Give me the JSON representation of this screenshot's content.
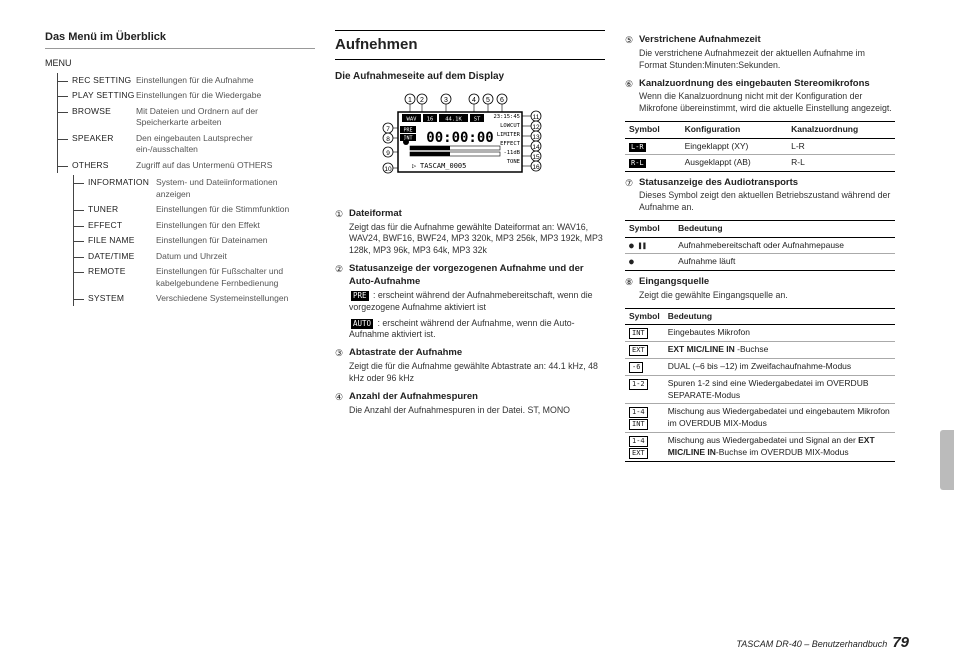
{
  "col1": {
    "heading": "Das Menü im Überblick",
    "root_label": "MENU",
    "lvl1": [
      {
        "name": "REC SETTING",
        "desc": "Einstellungen für die Aufnahme"
      },
      {
        "name": "PLAY SETTING",
        "desc": "Einstellungen für die Wiedergabe"
      },
      {
        "name": "BROWSE",
        "desc": "Mit Dateien und Ordnern auf der Speicherkarte arbeiten"
      },
      {
        "name": "SPEAKER",
        "desc": "Den eingebauten Lautsprecher ein-/ausschalten"
      },
      {
        "name": "OTHERS",
        "desc": "Zugriff auf das Untermenü OTHERS"
      }
    ],
    "lvl2": [
      {
        "name": "INFORMATION",
        "desc": "System- und Dateiinformationen anzeigen"
      },
      {
        "name": "TUNER",
        "desc": "Einstellungen für die Stimmfunktion"
      },
      {
        "name": "EFFECT",
        "desc": "Einstellungen für den Effekt"
      },
      {
        "name": "FILE NAME",
        "desc": "Einstellungen für Dateinamen"
      },
      {
        "name": "DATE/TIME",
        "desc": "Datum und Uhrzeit"
      },
      {
        "name": "REMOTE",
        "desc": "Einstellungen für Fußschalter und kabelgebundene Fernbedienung"
      },
      {
        "name": "SYSTEM",
        "desc": "Verschiedene Systemeinstellungen"
      }
    ]
  },
  "col2": {
    "title": "Aufnehmen",
    "sub": "Die Aufnahmeseite auf dem Display",
    "display": {
      "callouts": [
        "1",
        "2",
        "3",
        "4",
        "5",
        "6",
        "7",
        "8",
        "9",
        "10",
        "11",
        "12",
        "13",
        "14",
        "15",
        "16"
      ],
      "row1": [
        "WAV",
        "16",
        "44.1K",
        "ST"
      ],
      "time": "00:00:00",
      "right_labels_small": [
        "23:15:45",
        "LOWCUT",
        "LIMITER",
        "EFFECT",
        "-11dB",
        "TONE"
      ],
      "left_labels_small": [
        "PRE",
        "INT",
        "",
        "",
        ""
      ],
      "bottom": "TASCAM_0005"
    },
    "items": [
      {
        "n": "①",
        "t": "Dateiformat",
        "b": "Zeigt das für die Aufnahme gewählte Dateiformat an: WAV16, WAV24, BWF16, BWF24, MP3 320k, MP3 256k, MP3 192k, MP3 128k, MP3 96k, MP3 64k, MP3 32k"
      },
      {
        "n": "②",
        "t": "Statusanzeige der vorgezogenen Aufnahme und der Auto-Aufnahme",
        "b": ""
      },
      {
        "n": "③",
        "t": "Abtastrate der Aufnahme",
        "b": "Zeigt die für die Aufnahme gewählte Abtastrate an: 44.1 kHz, 48 kHz oder 96 kHz"
      },
      {
        "n": "④",
        "t": "Anzahl der Aufnahmespuren",
        "b": "Die Anzahl der Aufnahmespuren in der Datei. ST, MONO"
      }
    ],
    "item2_pre_label": "PRE",
    "item2_pre_text": " : erscheint während der Aufnahmebereitschaft, wenn die vorgezogene Aufnahme aktiviert ist",
    "item2_auto_label": "AUTO",
    "item2_auto_text": " : erscheint während der Aufnahme, wenn die Auto-Aufnahme aktiviert ist."
  },
  "col3": {
    "items": [
      {
        "n": "⑤",
        "t": "Verstrichene Aufnahmezeit",
        "b": "Die verstrichene Aufnahmezeit der aktuellen Aufnahme im Format Stunden:Minuten:Sekunden."
      },
      {
        "n": "⑥",
        "t": "Kanalzuordnung des eingebauten Stereomikrofons",
        "b": "Wenn die Kanalzuordnung nicht mit der Konfiguration der Mikrofone übereinstimmt, wird die aktuelle Einstellung angezeigt."
      }
    ],
    "table1": {
      "head": [
        "Symbol",
        "Konfiguration",
        "Kanalzuordnung"
      ],
      "rows": [
        [
          "L-R",
          "Eingeklappt (XY)",
          "L-R"
        ],
        [
          "R-L",
          "Ausgeklappt (AB)",
          "R-L"
        ]
      ]
    },
    "item7": {
      "n": "⑦",
      "t": "Statusanzeige des Audiotransports",
      "b": "Dieses Symbol zeigt den aktuellen Betriebszustand während der Aufnahme an."
    },
    "table2": {
      "head": [
        "Symbol",
        "Bedeutung"
      ],
      "rows": [
        [
          "● ❚❚",
          "Aufnahmebereitschaft oder Aufnahmepause"
        ],
        [
          "●",
          "Aufnahme läuft"
        ]
      ]
    },
    "item8": {
      "n": "⑧",
      "t": "Eingangsquelle",
      "b": "Zeigt die gewählte Eingangsquelle an."
    },
    "table3": {
      "head": [
        "Symbol",
        "Bedeutung"
      ],
      "rows": [
        [
          "INT",
          "Eingebautes Mikrofon"
        ],
        [
          "EXT",
          " -Buchse"
        ],
        [
          "-6",
          "DUAL (–6 bis –12) im Zweifachaufnahme-Modus"
        ],
        [
          "1-2",
          "Spuren 1-2 sind eine Wiedergabedatei im OVERDUB SEPARATE-Modus"
        ],
        [
          "1-4\nINT",
          "Mischung aus Wiedergabedatei und eingebautem Mikrofon im OVERDUB MIX-Modus"
        ],
        [
          "1-4\nEXT",
          "Mischung aus Wiedergabedatei und Signal an der  -Buchse im OVERDUB MIX-Modus"
        ]
      ]
    },
    "ext_mic_label": "EXT MIC/LINE IN"
  },
  "footer": {
    "title": "TASCAM DR-40 – Benutzerhandbuch",
    "page": "79"
  }
}
